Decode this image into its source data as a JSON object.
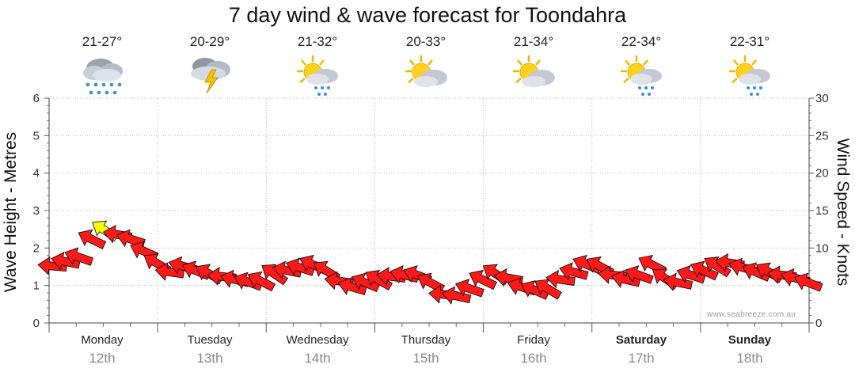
{
  "title": "7 day wind & wave forecast for Toondahra",
  "watermark": "www.seabreeze.com.au",
  "left_axis_label": "Wave Height - Metres",
  "right_axis_label": "Wind Speed - Knots",
  "days": [
    {
      "name": "Monday",
      "date": "12th",
      "temp": "21-27°",
      "icon": "rain-cloud-icon",
      "bold": false
    },
    {
      "name": "Tuesday",
      "date": "13th",
      "temp": "20-29°",
      "icon": "thunderstorm-icon",
      "bold": false
    },
    {
      "name": "Wednesday",
      "date": "14th",
      "temp": "21-32°",
      "icon": "sun-cloud-showers-icon",
      "bold": false
    },
    {
      "name": "Thursday",
      "date": "15th",
      "temp": "20-33°",
      "icon": "sun-cloud-icon",
      "bold": false
    },
    {
      "name": "Friday",
      "date": "16th",
      "temp": "21-34°",
      "icon": "sun-cloud-icon",
      "bold": false
    },
    {
      "name": "Saturday",
      "date": "17th",
      "temp": "22-34°",
      "icon": "sun-cloud-showers-icon",
      "bold": true
    },
    {
      "name": "Sunday",
      "date": "18th",
      "temp": "22-31°",
      "icon": "sun-cloud-showers-icon",
      "bold": true
    }
  ],
  "chart_data": {
    "type": "line",
    "left_axis": {
      "ticks": [
        "0",
        "1",
        "2",
        "3",
        "4",
        "5",
        "6"
      ],
      "ylim": [
        0,
        6
      ]
    },
    "right_axis": {
      "ticks": [
        "0",
        "5",
        "10",
        "15",
        "20",
        "25",
        "30"
      ],
      "ylim": [
        0,
        30
      ]
    },
    "x_days": 7,
    "grid": true,
    "colors": {
      "wind_arrow": "#ff1a1a",
      "wind_arrow_strong": "#ffff00",
      "arrow_outline": "#000000",
      "grid": "#bbbbbb"
    },
    "series": [
      {
        "values": [
          {
            "day": 0.0,
            "knots": 7.6
          },
          {
            "day": 0.12,
            "knots": 8.2
          },
          {
            "day": 0.24,
            "knots": 8.8
          },
          {
            "day": 0.36,
            "knots": 11.2
          },
          {
            "day": 0.48,
            "knots": 12.4
          },
          {
            "day": 0.6,
            "knots": 11.8
          },
          {
            "day": 0.72,
            "knots": 11.2
          },
          {
            "day": 0.84,
            "knots": 9.6
          },
          {
            "day": 0.96,
            "knots": 8.0
          },
          {
            "day": 1.08,
            "knots": 6.8
          },
          {
            "day": 1.2,
            "knots": 7.6
          },
          {
            "day": 1.32,
            "knots": 7.0
          },
          {
            "day": 1.44,
            "knots": 6.6
          },
          {
            "day": 1.56,
            "knots": 6.2
          },
          {
            "day": 1.68,
            "knots": 5.8
          },
          {
            "day": 1.8,
            "knots": 5.5
          },
          {
            "day": 1.92,
            "knots": 5.6
          },
          {
            "day": 2.04,
            "knots": 6.6
          },
          {
            "day": 2.16,
            "knots": 7.0
          },
          {
            "day": 2.28,
            "knots": 7.4
          },
          {
            "day": 2.4,
            "knots": 7.8
          },
          {
            "day": 2.52,
            "knots": 7.0
          },
          {
            "day": 2.64,
            "knots": 5.6
          },
          {
            "day": 2.76,
            "knots": 4.8
          },
          {
            "day": 2.88,
            "knots": 5.4
          },
          {
            "day": 3.0,
            "knots": 5.8
          },
          {
            "day": 3.12,
            "knots": 6.2
          },
          {
            "day": 3.24,
            "knots": 6.4
          },
          {
            "day": 3.36,
            "knots": 6.4
          },
          {
            "day": 3.48,
            "knots": 5.4
          },
          {
            "day": 3.6,
            "knots": 3.8
          },
          {
            "day": 3.72,
            "knots": 3.6
          },
          {
            "day": 3.84,
            "knots": 4.6
          },
          {
            "day": 3.96,
            "knots": 5.8
          },
          {
            "day": 4.08,
            "knots": 6.6
          },
          {
            "day": 4.2,
            "knots": 6.0
          },
          {
            "day": 4.32,
            "knots": 4.8
          },
          {
            "day": 4.44,
            "knots": 4.4
          },
          {
            "day": 4.56,
            "knots": 4.6
          },
          {
            "day": 4.68,
            "knots": 5.8
          },
          {
            "day": 4.8,
            "knots": 6.8
          },
          {
            "day": 4.92,
            "knots": 7.8
          },
          {
            "day": 5.04,
            "knots": 7.6
          },
          {
            "day": 5.16,
            "knots": 6.4
          },
          {
            "day": 5.28,
            "knots": 5.8
          },
          {
            "day": 5.4,
            "knots": 6.4
          },
          {
            "day": 5.52,
            "knots": 7.8
          },
          {
            "day": 5.64,
            "knots": 6.0
          },
          {
            "day": 5.76,
            "knots": 5.4
          },
          {
            "day": 5.88,
            "knots": 6.4
          },
          {
            "day": 6.0,
            "knots": 7.0
          },
          {
            "day": 6.12,
            "knots": 7.6
          },
          {
            "day": 6.24,
            "knots": 8.0
          },
          {
            "day": 6.36,
            "knots": 7.4
          },
          {
            "day": 6.48,
            "knots": 6.8
          },
          {
            "day": 6.6,
            "knots": 6.8
          },
          {
            "day": 6.72,
            "knots": 6.4
          },
          {
            "day": 6.84,
            "knots": 6.0
          },
          {
            "day": 6.96,
            "knots": 5.4
          }
        ]
      }
    ]
  }
}
